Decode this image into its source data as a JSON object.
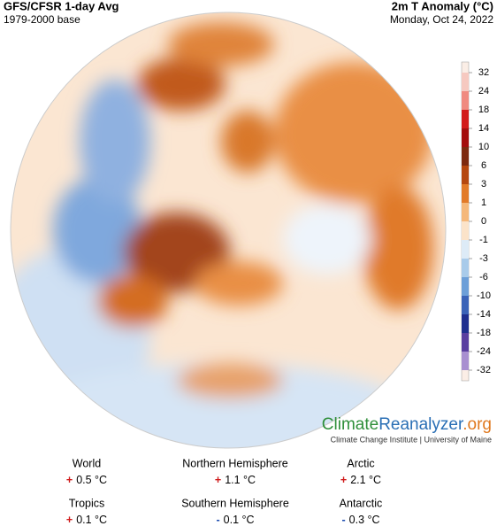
{
  "header": {
    "title": "GFS/CFSR 1-day Avg",
    "subtitle": "1979-2000 base",
    "variable": "2m T Anomaly (°C)",
    "date": "Monday, Oct 24, 2022"
  },
  "colorbar": {
    "ticks": [
      32,
      24,
      18,
      14,
      10,
      6,
      3,
      1,
      0,
      -1,
      -3,
      -6,
      -10,
      -14,
      -18,
      -24,
      -32
    ],
    "colors": [
      "#f6c9c0",
      "#f08a80",
      "#d21a1a",
      "#a40d0d",
      "#7d2a10",
      "#b5470f",
      "#e27a28",
      "#f5b87a",
      "#fbe3c9",
      "#ddebf7",
      "#a9cbea",
      "#6d9fd8",
      "#3b63b8",
      "#1f2f8f",
      "#5a3fa0",
      "#a88fd0"
    ]
  },
  "logo": {
    "part1": "Climate",
    "part2": "Reanalyzer",
    "part3": ".org",
    "credit": "Climate Change Institute | University of Maine"
  },
  "stats": [
    {
      "name": "World",
      "sign": "+",
      "value": "0.5 °C"
    },
    {
      "name": "Northern Hemisphere",
      "sign": "+",
      "value": "1.1 °C"
    },
    {
      "name": "Arctic",
      "sign": "+",
      "value": "2.1 °C"
    },
    {
      "name": "Tropics",
      "sign": "+",
      "value": "0.1 °C"
    },
    {
      "name": "Southern Hemisphere",
      "sign": "-",
      "value": "0.1 °C"
    },
    {
      "name": "Antarctic",
      "sign": "-",
      "value": "0.3 °C"
    }
  ]
}
